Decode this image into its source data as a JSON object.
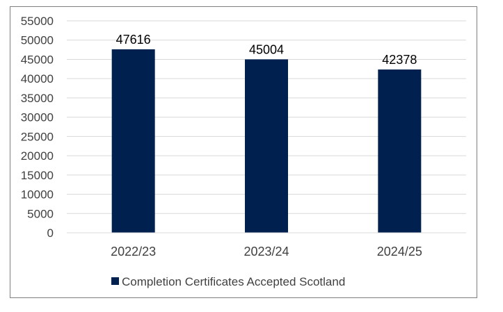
{
  "chart_data": {
    "type": "bar",
    "categories": [
      "2022/23",
      "2023/24",
      "2024/25"
    ],
    "series": [
      {
        "name": "Completion Certificates Accepted Scotland",
        "values": [
          47616,
          45004,
          42378
        ],
        "color": "#002050"
      }
    ],
    "data_labels": [
      "47616",
      "45004",
      "42378"
    ],
    "ylim": [
      0,
      55000
    ],
    "y_ticks": [
      0,
      5000,
      10000,
      15000,
      20000,
      25000,
      30000,
      35000,
      40000,
      45000,
      50000,
      55000
    ],
    "y_tick_labels": [
      "0",
      "5000",
      "10000",
      "15000",
      "20000",
      "25000",
      "30000",
      "35000",
      "40000",
      "45000",
      "50000",
      "55000"
    ],
    "grid": true,
    "gridline_color": "#d9d9d9",
    "legend_position": "bottom",
    "title": "",
    "xlabel": "",
    "ylabel": ""
  }
}
